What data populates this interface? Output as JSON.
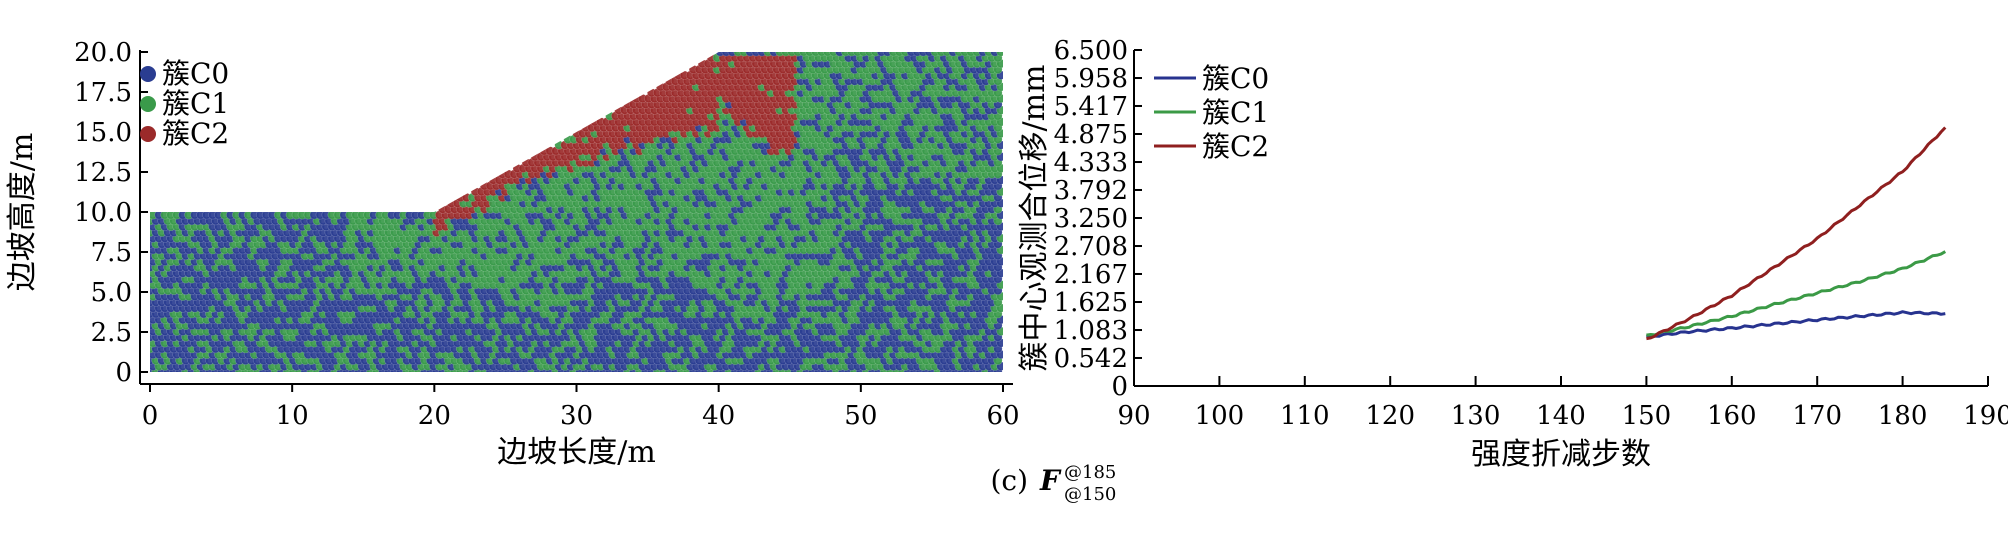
{
  "chart_data": [
    {
      "type": "scatter",
      "xlabel": "边坡长度/m",
      "ylabel": "边坡高度/m",
      "xlim": [
        0,
        60
      ],
      "ylim": [
        0,
        20
      ],
      "xticks": [
        "0",
        "10",
        "20",
        "30",
        "40",
        "50",
        "60"
      ],
      "yticks": [
        "0",
        "2.5",
        "5.0",
        "7.5",
        "10.0",
        "12.5",
        "15.0",
        "17.5",
        "20.0"
      ],
      "legend_position": "top-left",
      "geometry": {
        "slope_profile": [
          [
            0,
            0
          ],
          [
            60,
            0
          ],
          [
            60,
            20
          ],
          [
            40,
            20
          ],
          [
            20,
            10
          ],
          [
            0,
            10
          ]
        ]
      },
      "series": [
        {
          "name": "簇C0",
          "color": "#2a3d91",
          "region": "base and right part of slope"
        },
        {
          "name": "簇C1",
          "color": "#3a9a4a",
          "region": "transition zone below sliding body"
        },
        {
          "name": "簇C2",
          "color": "#9b2a2a",
          "region": "sliding wedge between x=20 and x=45 near the slope face"
        }
      ]
    },
    {
      "type": "line",
      "xlabel": "强度折减步数",
      "ylabel": "簇中心观测合位移/mm",
      "xlim": [
        90,
        190
      ],
      "ylim": [
        0,
        6.5
      ],
      "xticks": [
        "90",
        "100",
        "110",
        "120",
        "130",
        "140",
        "150",
        "160",
        "170",
        "180",
        "190"
      ],
      "yticks": [
        "0",
        "0.542",
        "1.083",
        "1.625",
        "2.167",
        "2.708",
        "3.250",
        "3.792",
        "4.333",
        "4.875",
        "5.417",
        "5.958",
        "6.500"
      ],
      "legend_position": "top-left",
      "x": [
        150,
        155,
        160,
        165,
        170,
        175,
        180,
        185
      ],
      "series": [
        {
          "name": "簇C0",
          "color": "#27338f",
          "values": [
            0.95,
            1.05,
            1.12,
            1.2,
            1.28,
            1.35,
            1.42,
            1.4
          ]
        },
        {
          "name": "簇C1",
          "color": "#3b9a46",
          "values": [
            0.97,
            1.15,
            1.35,
            1.58,
            1.8,
            2.02,
            2.27,
            2.6
          ]
        },
        {
          "name": "簇C2",
          "color": "#8f1f1f",
          "values": [
            0.9,
            1.3,
            1.75,
            2.3,
            2.85,
            3.5,
            4.15,
            5.0
          ]
        }
      ]
    }
  ],
  "caption": {
    "prefix": "(c)",
    "symbol": "F",
    "superscript": "@185",
    "subscript": "@150"
  }
}
